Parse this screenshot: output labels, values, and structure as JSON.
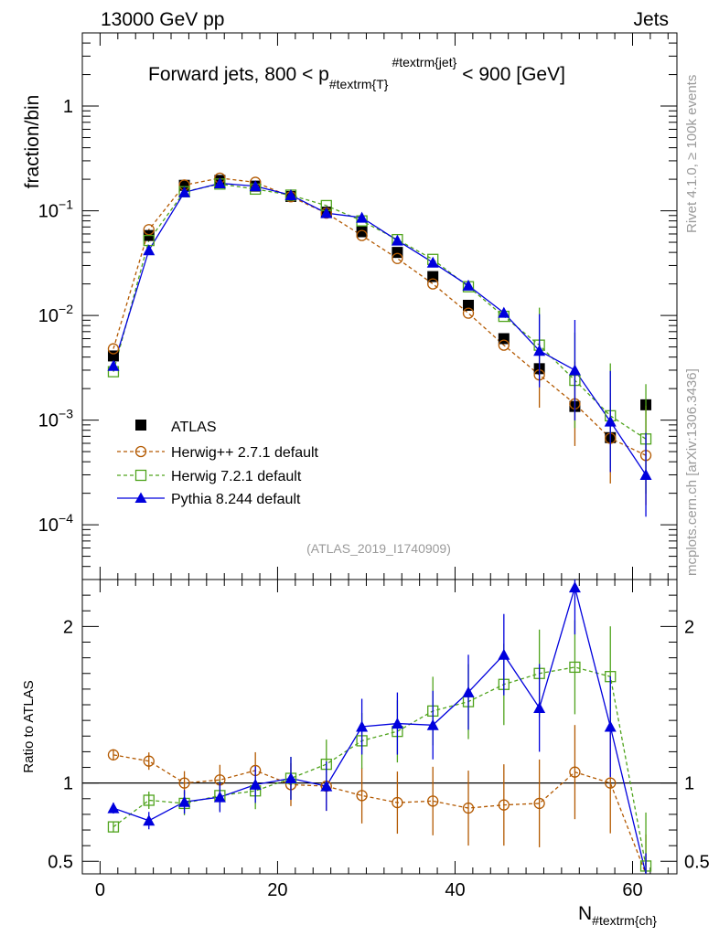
{
  "header": {
    "left": "13000 GeV pp",
    "right": "Jets"
  },
  "side_labels": {
    "top": "Rivet 4.1.0, ≥ 100k events",
    "bottom": "mcplots.cern.ch [arXiv:1306.3436]"
  },
  "colors": {
    "atlas": "#000000",
    "herwigpp": "#b35900",
    "herwig7": "#4fa31c",
    "pythia": "#0000dd",
    "watermark": "#9a9a9a"
  },
  "chart_data": [
    {
      "type": "scatter",
      "panel": "main",
      "title": "Forward jets, 800 < p_{#textrm{T}}^{#textrm{jet}} < 900 [GeV]",
      "title_parts": {
        "pre": "Forward jets, 800 < p",
        "sub": "#textrm{T}",
        "sup": "#textrm{jet}",
        "post": "< 900 [GeV]"
      },
      "ylabel": "fraction/bin",
      "yscale": "log",
      "ylim": [
        3e-05,
        5
      ],
      "xlim": [
        -2,
        65
      ],
      "watermark": "(ATLAS_2019_I1740909)",
      "y_tick_labels": [
        {
          "base": "10",
          "exp": "−4",
          "value": 0.0001
        },
        {
          "base": "10",
          "exp": "−3",
          "value": 0.001
        },
        {
          "base": "10",
          "exp": "−2",
          "value": 0.01
        },
        {
          "base": "10",
          "exp": "−1",
          "value": 0.1
        },
        {
          "base": "1",
          "exp": "",
          "value": 1
        }
      ],
      "x": [
        1.5,
        5.5,
        9.5,
        13.5,
        17.5,
        21.5,
        25.5,
        29.5,
        33.5,
        37.5,
        41.5,
        45.5,
        49.5,
        53.5,
        57.5,
        61.5
      ],
      "series": [
        {
          "name": "ATLAS",
          "key": "atlas",
          "values": [
            0.0041,
            0.058,
            0.175,
            0.195,
            0.172,
            0.137,
            0.097,
            0.063,
            0.04,
            0.0235,
            0.0125,
            0.006,
            0.0031,
            0.00135,
            0.00068,
            0.0014
          ]
        },
        {
          "name": "Herwig++ 2.7.1 default",
          "key": "herwigpp",
          "values": [
            0.0048,
            0.066,
            0.176,
            0.205,
            0.187,
            0.136,
            0.095,
            0.058,
            0.035,
            0.02,
            0.0105,
            0.0052,
            0.0027,
            0.00143,
            0.00067,
            0.00046
          ]
        },
        {
          "name": "Herwig 7.2.1 default",
          "key": "herwig7",
          "values": [
            0.0029,
            0.052,
            0.152,
            0.18,
            0.161,
            0.141,
            0.112,
            0.08,
            0.053,
            0.0343,
            0.0188,
            0.0098,
            0.0052,
            0.0024,
            0.0011,
            0.00066
          ]
        },
        {
          "name": "Pythia 8.244 default",
          "key": "pythia",
          "values": [
            0.0033,
            0.042,
            0.15,
            0.183,
            0.172,
            0.141,
            0.095,
            0.086,
            0.052,
            0.032,
            0.0193,
            0.0106,
            0.0046,
            0.003,
            0.00097,
            0.0003
          ]
        }
      ]
    },
    {
      "type": "line",
      "panel": "ratio",
      "ylabel": "Ratio to ATLAS",
      "xlabel": "N_{#textrm{ch}}",
      "xlabel_parts": {
        "base": "N",
        "sub": "#textrm{ch}"
      },
      "ylim": [
        0.42,
        2.3
      ],
      "xlim": [
        -2,
        65
      ],
      "x_tick_labels": [
        "0",
        "20",
        "40",
        "60"
      ],
      "y_tick_labels": [
        "0.5",
        "1",
        "2"
      ],
      "x": [
        1.5,
        5.5,
        9.5,
        13.5,
        17.5,
        21.5,
        25.5,
        29.5,
        33.5,
        37.5,
        41.5,
        45.5,
        49.5,
        53.5,
        57.5,
        61.5
      ],
      "series": [
        {
          "name": "Herwig++ 2.7.1 default",
          "key": "herwigpp",
          "values": [
            1.18,
            1.14,
            1.0,
            1.02,
            1.08,
            0.99,
            0.98,
            0.92,
            0.875,
            0.885,
            0.84,
            0.86,
            0.87,
            1.07,
            1.0,
            0.33
          ]
        },
        {
          "name": "Herwig 7.2.1 default",
          "key": "herwig7",
          "values": [
            0.72,
            0.89,
            0.87,
            0.92,
            0.95,
            1.03,
            1.12,
            1.27,
            1.33,
            1.46,
            1.52,
            1.63,
            1.7,
            1.74,
            1.68,
            0.47
          ]
        },
        {
          "name": "Pythia 8.244 default",
          "key": "pythia",
          "values": [
            0.84,
            0.76,
            0.88,
            0.91,
            0.99,
            1.03,
            0.98,
            1.36,
            1.38,
            1.37,
            1.58,
            1.82,
            1.48,
            2.25,
            1.36,
            0.21
          ]
        }
      ]
    }
  ]
}
